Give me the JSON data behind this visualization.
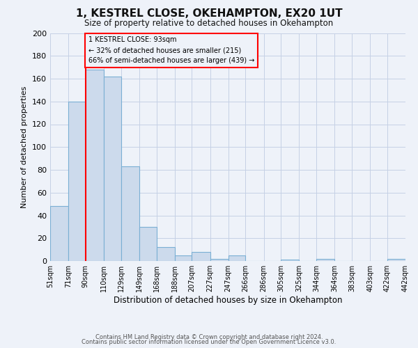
{
  "title": "1, KESTREL CLOSE, OKEHAMPTON, EX20 1UT",
  "subtitle": "Size of property relative to detached houses in Okehampton",
  "xlabel": "Distribution of detached houses by size in Okehampton",
  "ylabel": "Number of detached properties",
  "bar_values": [
    48,
    140,
    168,
    162,
    83,
    30,
    12,
    5,
    8,
    2,
    5,
    0,
    0,
    1,
    0,
    2,
    0,
    0,
    0,
    2
  ],
  "bar_labels": [
    "51sqm",
    "71sqm",
    "90sqm",
    "110sqm",
    "129sqm",
    "149sqm",
    "168sqm",
    "188sqm",
    "207sqm",
    "227sqm",
    "247sqm",
    "266sqm",
    "286sqm",
    "305sqm",
    "325sqm",
    "344sqm",
    "364sqm",
    "383sqm",
    "403sqm",
    "422sqm",
    "442sqm"
  ],
  "bar_color": "#ccdaec",
  "bar_edge_color": "#7aafd4",
  "ylim": [
    0,
    200
  ],
  "yticks": [
    0,
    20,
    40,
    60,
    80,
    100,
    120,
    140,
    160,
    180,
    200
  ],
  "property_line_label": "1 KESTREL CLOSE: 93sqm",
  "annotation_smaller": "← 32% of detached houses are smaller (215)",
  "annotation_larger": "66% of semi-detached houses are larger (439) →",
  "bin_edges": [
    51,
    71,
    90,
    110,
    129,
    149,
    168,
    188,
    207,
    227,
    247,
    266,
    286,
    305,
    325,
    344,
    364,
    383,
    403,
    422,
    442
  ],
  "footnote1": "Contains HM Land Registry data © Crown copyright and database right 2024.",
  "footnote2": "Contains public sector information licensed under the Open Government Licence v3.0.",
  "background_color": "#eef2f9",
  "grid_color": "#c5d0e5",
  "red_line_x": 90
}
